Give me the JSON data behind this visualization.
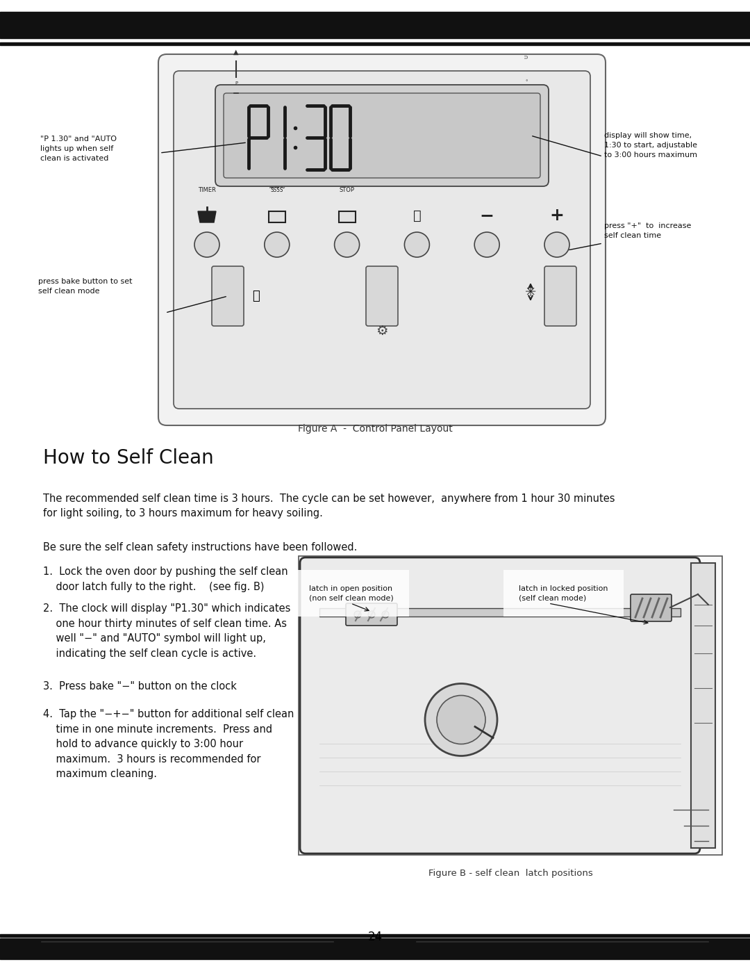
{
  "page_width": 10.8,
  "page_height": 13.97,
  "bg_color": "#ffffff",
  "bar_color": "#111111",
  "figure_a_caption": "Figure A  -  Control Panel Layout",
  "figure_b_caption": "Figure B - self clean  latch positions",
  "how_to_title": "How to Self Clean",
  "page_number": "24",
  "annot_p130": "\"P 1.30\" and \"AUTO\nlights up when self\nclean is activated",
  "annot_display": "display will show time,\n1:30 to start, adjustable\nto 3:00 hours maximum",
  "annot_plus": "press \"+\"  to  increase\nself clean time",
  "annot_bake": "press bake button to set\nself clean mode",
  "annot_latch_open": "latch in open position\n(non self clean mode)",
  "annot_latch_locked": "latch in locked position\n(self clean mode)",
  "para1": "The recommended self clean time is 3 hours.  The cycle can be set however,  anywhere from 1 hour 30 minutes\nfor light soiling, to 3 hours maximum for heavy soiling.",
  "para2": "Be sure the self clean safety instructions have been followed.",
  "step1": "1.  Lock the oven door by pushing the self clean\n    door latch fully to the right.    (see fig. B)",
  "step2a": "2.  The clock will display \"P1.30\" which indicates",
  "step2b": "    one hour thirty minutes of self clean time. As",
  "step2c": "    well \"—\" and \"AUTO\" symbol will light up,",
  "step2d": "    indicating the self clean cycle is active.",
  "step3": "3.  Press bake \"—\" button on the clock",
  "step4a": "4.  Tap the \"—+—\" button for additional self clean",
  "step4b": "    time in one minute increments.  Press and",
  "step4c": "    hold to advance quickly to 3:00 hour",
  "step4d": "    maximum.  3 hours is recommended for",
  "step4e": "    maximum cleaning."
}
